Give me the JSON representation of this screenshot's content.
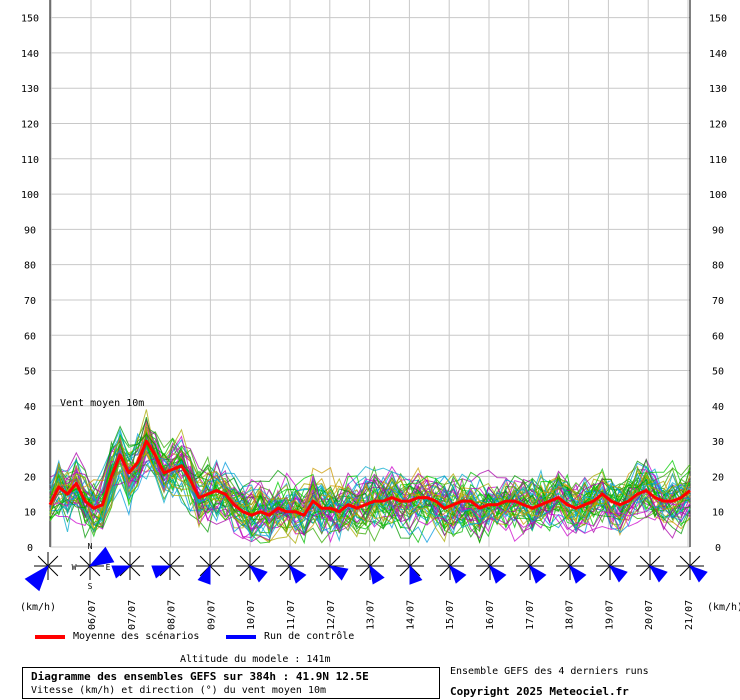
{
  "chart_data": {
    "type": "line",
    "title": "Diagramme des ensembles GEFS sur 384h : 41.9N 12.5E",
    "subtitle": "Vitesse (km/h) et direction (°) du vent moyen 10m",
    "series_label": "Vent moyen 10m",
    "ylabel_left": "(km/h)",
    "ylabel_right": "(km/h)",
    "ylim": [
      0,
      155
    ],
    "yticks": [
      0,
      10,
      20,
      30,
      40,
      50,
      60,
      70,
      80,
      90,
      100,
      110,
      120,
      130,
      140,
      150
    ],
    "x_tick_labels": [
      "06/07",
      "07/07",
      "08/07",
      "09/07",
      "10/07",
      "11/07",
      "12/07",
      "13/07",
      "14/07",
      "15/07",
      "16/07",
      "17/07",
      "18/07",
      "19/07",
      "20/07",
      "21/07"
    ],
    "mean_series": {
      "name": "Moyenne des scénarios",
      "color": "#ff0000",
      "values": [
        12,
        17,
        15,
        18,
        13,
        11,
        12,
        20,
        26,
        21,
        24,
        30,
        26,
        21,
        22,
        23,
        19,
        14,
        15,
        16,
        15,
        12,
        10,
        9,
        10,
        9,
        11,
        10,
        10,
        9,
        13,
        11,
        11,
        10,
        12,
        11,
        12,
        13,
        13,
        14,
        13,
        13,
        14,
        14,
        13,
        11,
        12,
        13,
        13,
        11,
        12,
        12,
        13,
        13,
        12,
        11,
        12,
        13,
        14,
        12,
        11,
        12,
        13,
        15,
        13,
        12,
        13,
        15,
        16,
        14,
        13,
        13,
        14,
        16
      ]
    },
    "control_series": {
      "name": "Run de contrôle",
      "color": "#0000ff"
    },
    "ensemble_colors": [
      "#00bb00",
      "#00cc00",
      "#33aa00",
      "#009900",
      "#aa00aa",
      "#cc00cc",
      "#00aacc",
      "#0099dd",
      "#aaaa00",
      "#cc9900"
    ],
    "wind_rose_direction_labels": [
      "N",
      "W",
      "E",
      "S"
    ],
    "wind_direction_arrows_deg": [
      220,
      60,
      250,
      250,
      200,
      130,
      140,
      120,
      150,
      160,
      140,
      140,
      140,
      140,
      130,
      130,
      130,
      130,
      130,
      130
    ]
  },
  "legend": {
    "mean_label": "Moyenne des scénarios",
    "control_label": "Run de contrôle"
  },
  "footer": {
    "altitude": "Altitude du modele : 141m",
    "title_line1": "Diagramme des ensembles GEFS sur 384h : 41.9N 12.5E",
    "title_line2": "Vitesse (km/h) et direction (°) du vent moyen 10m",
    "right_note": "Ensemble GEFS des 4 derniers runs",
    "copyright": "Copyright 2025 Meteociel.fr"
  }
}
